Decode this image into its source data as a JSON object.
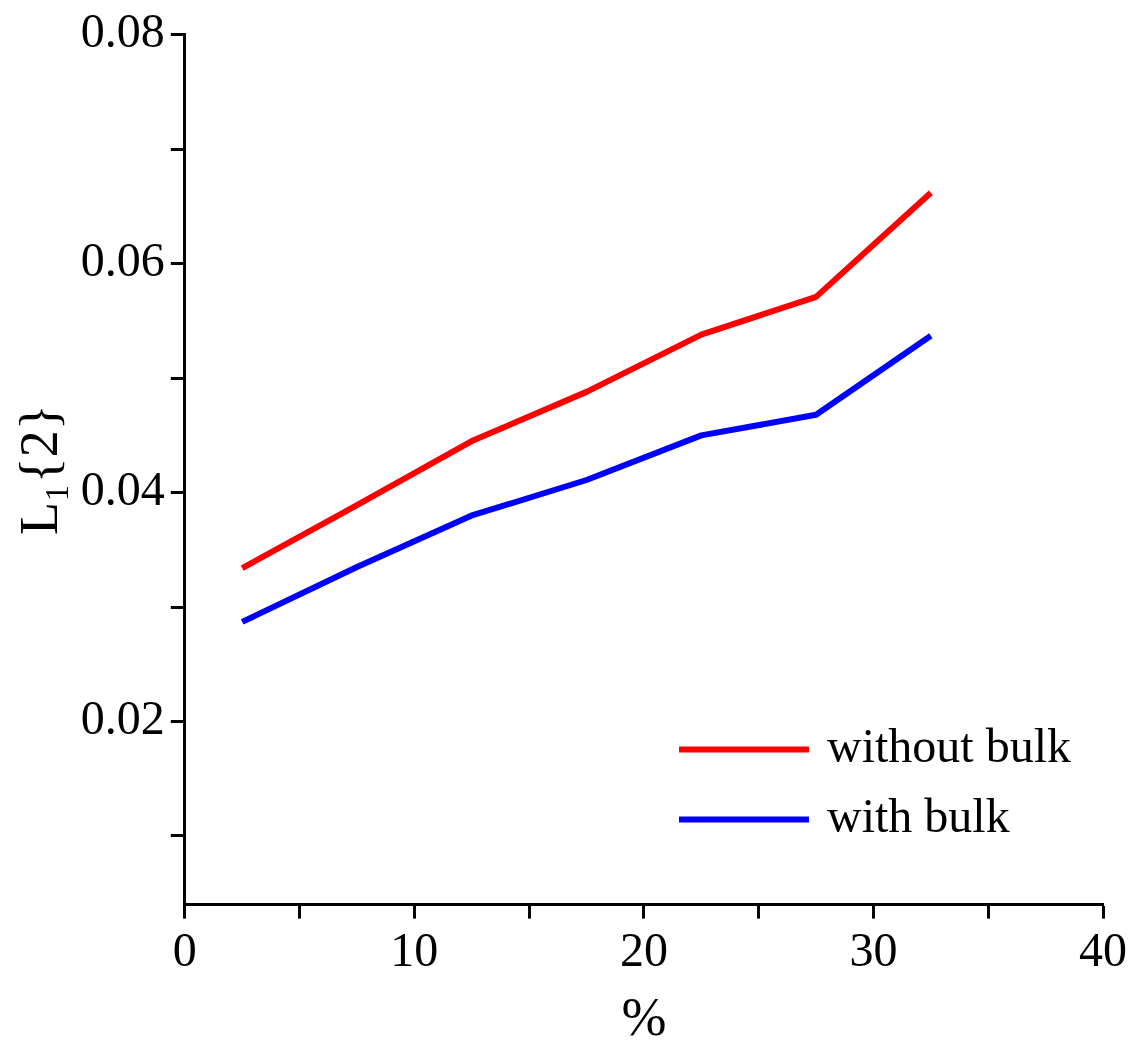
{
  "chart_data": {
    "type": "line",
    "xlabel": "%",
    "ylabel": "L₁{2}",
    "x": [
      2.5,
      7.5,
      12.5,
      17.5,
      22.5,
      27.5,
      32.5
    ],
    "series": [
      {
        "name": "without bulk",
        "color": "#ff0000",
        "values": [
          0.0334,
          0.0389,
          0.0445,
          0.0488,
          0.0538,
          0.0571,
          0.0662
        ]
      },
      {
        "name": "with bulk",
        "color": "#0000ff",
        "values": [
          0.0287,
          0.0335,
          0.038,
          0.0411,
          0.045,
          0.0468,
          0.0537
        ]
      }
    ],
    "xlim": [
      0,
      40
    ],
    "xticks": [
      0,
      {
        "value": 5,
        "label": null
      },
      10,
      {
        "value": 15,
        "label": null
      },
      20,
      {
        "value": 25,
        "label": null
      },
      30,
      {
        "value": 35,
        "label": null
      },
      40
    ],
    "ylim": [
      0.004,
      0.08
    ],
    "yticks": [
      {
        "value": 0.01,
        "label": null
      },
      0.02,
      {
        "value": 0.03,
        "label": null
      },
      0.04,
      {
        "value": 0.05,
        "label": null
      },
      0.06,
      {
        "value": 0.07,
        "label": null
      },
      0.08
    ],
    "grid": false,
    "legend": "bottom right",
    "marker": "none",
    "line_style": "solid"
  }
}
